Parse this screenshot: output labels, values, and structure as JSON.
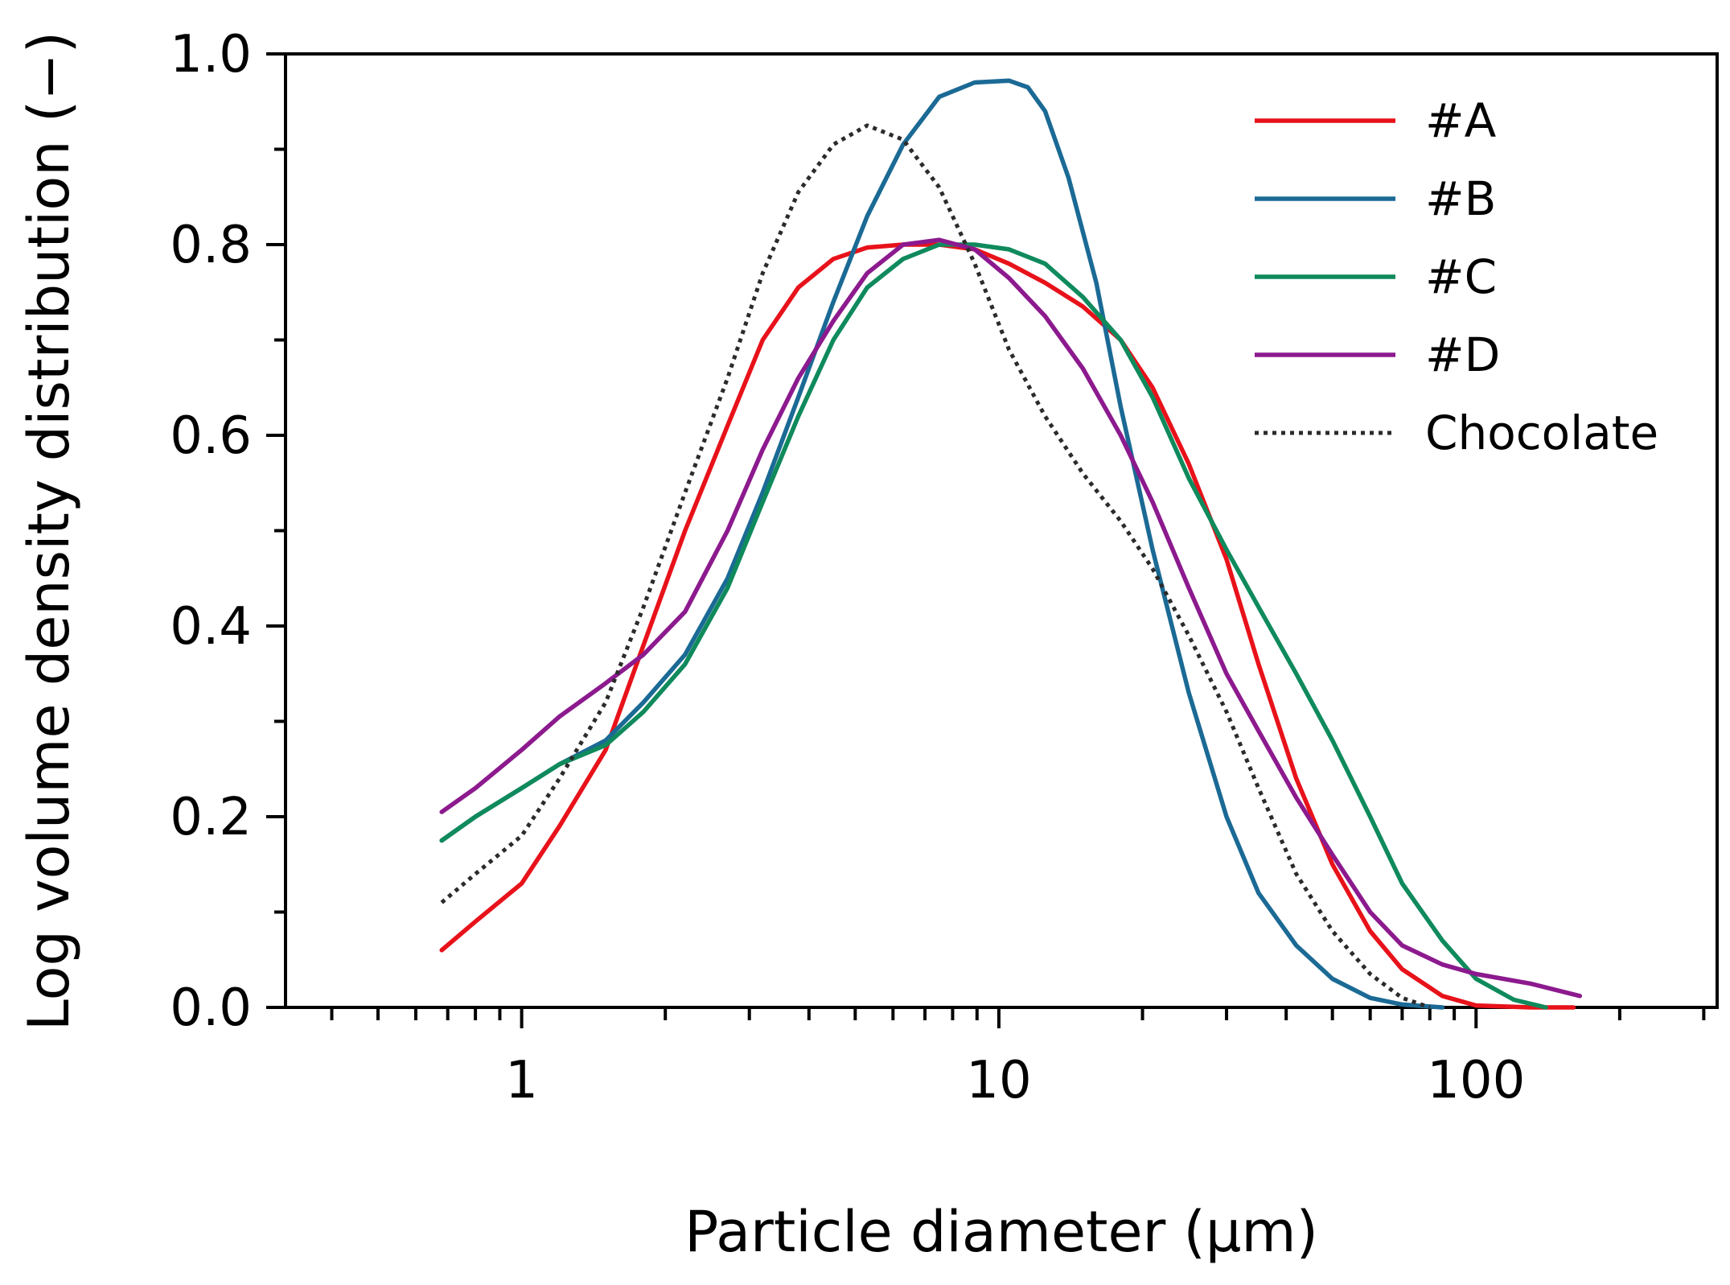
{
  "chart_data": {
    "type": "line",
    "title": "",
    "xlabel": "Particle diameter (μm)",
    "ylabel": "Log volume density distribution (−)",
    "xscale": "log",
    "xlim": [
      0.32,
      320
    ],
    "ylim": [
      0,
      1.0
    ],
    "xticks": [
      {
        "value": 1,
        "label": "1"
      },
      {
        "value": 10,
        "label": "10"
      },
      {
        "value": 100,
        "label": "100"
      }
    ],
    "yticks": [
      {
        "value": 0.0,
        "label": "0.0"
      },
      {
        "value": 0.2,
        "label": "0.2"
      },
      {
        "value": 0.4,
        "label": "0.4"
      },
      {
        "value": 0.6,
        "label": "0.6"
      },
      {
        "value": 0.8,
        "label": "0.8"
      },
      {
        "value": 1.0,
        "label": "1.0"
      }
    ],
    "grid": false,
    "legend_position": "top-right",
    "series": [
      {
        "name": "#A",
        "color": "#e8121a",
        "dash": "solid",
        "x": [
          0.68,
          0.8,
          1.0,
          1.2,
          1.5,
          1.8,
          2.2,
          2.7,
          3.2,
          3.8,
          4.5,
          5.3,
          6.3,
          7.5,
          8.9,
          10.5,
          12.5,
          15,
          18,
          21,
          25,
          30,
          35,
          42,
          50,
          60,
          70,
          85,
          100,
          130,
          160
        ],
        "values": [
          0.06,
          0.09,
          0.13,
          0.19,
          0.27,
          0.38,
          0.5,
          0.61,
          0.7,
          0.755,
          0.785,
          0.797,
          0.8,
          0.8,
          0.795,
          0.78,
          0.76,
          0.735,
          0.7,
          0.65,
          0.57,
          0.47,
          0.36,
          0.24,
          0.15,
          0.08,
          0.04,
          0.012,
          0.002,
          0.0,
          0.0
        ]
      },
      {
        "name": "#B",
        "color": "#1b6a95",
        "dash": "solid",
        "x": [
          0.68,
          0.8,
          1.0,
          1.2,
          1.5,
          1.8,
          2.2,
          2.7,
          3.2,
          3.8,
          4.5,
          5.3,
          6.3,
          7.5,
          8.9,
          10.5,
          11.5,
          12.5,
          14,
          16,
          18,
          21,
          25,
          30,
          35,
          42,
          50,
          60,
          70,
          85
        ],
        "values": [
          0.175,
          0.2,
          0.23,
          0.255,
          0.28,
          0.32,
          0.37,
          0.45,
          0.54,
          0.64,
          0.74,
          0.83,
          0.905,
          0.955,
          0.97,
          0.972,
          0.965,
          0.94,
          0.87,
          0.76,
          0.63,
          0.48,
          0.33,
          0.2,
          0.12,
          0.065,
          0.03,
          0.01,
          0.003,
          0.0
        ]
      },
      {
        "name": "#C",
        "color": "#0f8a5c",
        "dash": "solid",
        "x": [
          0.68,
          0.8,
          1.0,
          1.2,
          1.5,
          1.8,
          2.2,
          2.7,
          3.2,
          3.8,
          4.5,
          5.3,
          6.3,
          7.5,
          8.9,
          10.5,
          12.5,
          15,
          18,
          21,
          25,
          30,
          35,
          42,
          50,
          60,
          70,
          85,
          100,
          120,
          140
        ],
        "values": [
          0.175,
          0.2,
          0.23,
          0.255,
          0.275,
          0.31,
          0.36,
          0.44,
          0.53,
          0.62,
          0.7,
          0.755,
          0.785,
          0.8,
          0.8,
          0.795,
          0.78,
          0.745,
          0.7,
          0.64,
          0.555,
          0.48,
          0.42,
          0.35,
          0.28,
          0.2,
          0.13,
          0.07,
          0.03,
          0.008,
          0.0
        ]
      },
      {
        "name": "#D",
        "color": "#8c1a8e",
        "dash": "solid",
        "x": [
          0.68,
          0.8,
          1.0,
          1.2,
          1.5,
          1.8,
          2.2,
          2.7,
          3.2,
          3.8,
          4.5,
          5.3,
          6.3,
          7.5,
          8.9,
          10.5,
          12.5,
          15,
          18,
          21,
          25,
          30,
          35,
          42,
          50,
          60,
          70,
          85,
          100,
          130,
          165
        ],
        "values": [
          0.205,
          0.23,
          0.27,
          0.305,
          0.34,
          0.37,
          0.415,
          0.5,
          0.585,
          0.66,
          0.72,
          0.77,
          0.8,
          0.805,
          0.795,
          0.765,
          0.725,
          0.67,
          0.6,
          0.53,
          0.44,
          0.35,
          0.29,
          0.22,
          0.16,
          0.1,
          0.065,
          0.045,
          0.035,
          0.025,
          0.012
        ]
      },
      {
        "name": "Chocolate",
        "color": "#2b2b2b",
        "dash": "dotted",
        "x": [
          0.68,
          0.8,
          1.0,
          1.2,
          1.5,
          1.8,
          2.2,
          2.7,
          3.2,
          3.8,
          4.5,
          5.3,
          6.3,
          7.5,
          8.9,
          10.5,
          12.5,
          15,
          18,
          21,
          25,
          30,
          35,
          42,
          50,
          60,
          70,
          80
        ],
        "values": [
          0.11,
          0.14,
          0.18,
          0.24,
          0.32,
          0.42,
          0.54,
          0.66,
          0.77,
          0.855,
          0.905,
          0.925,
          0.91,
          0.86,
          0.78,
          0.69,
          0.62,
          0.56,
          0.51,
          0.46,
          0.39,
          0.31,
          0.23,
          0.14,
          0.08,
          0.035,
          0.01,
          0.0
        ]
      }
    ]
  }
}
